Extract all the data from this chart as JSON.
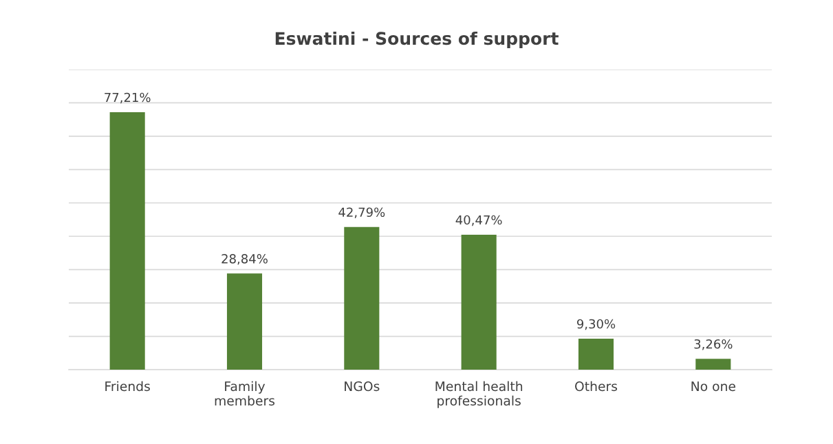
{
  "chart_data": {
    "type": "bar",
    "title": "Eswatini - Sources of support",
    "categories": [
      "Friends",
      "Family\nmembers",
      "NGOs",
      "Mental health\nprofessionals",
      "Others",
      "No one"
    ],
    "values": [
      77.21,
      28.84,
      42.79,
      40.47,
      9.3,
      3.26
    ],
    "value_labels": [
      "77,21%",
      "28,84%",
      "42,79%",
      "40,47%",
      "9,30%",
      "3,26%"
    ],
    "color": "#548235",
    "ylim": [
      0,
      90
    ],
    "yticks": [
      {
        "value": 0,
        "label": null
      },
      {
        "value": 10,
        "label": null
      },
      {
        "value": 20,
        "label": null
      },
      {
        "value": 30,
        "label": null
      },
      {
        "value": 40,
        "label": null
      },
      {
        "value": 50,
        "label": null
      },
      {
        "value": 60,
        "label": null
      },
      {
        "value": 70,
        "label": null
      },
      {
        "value": 80,
        "label": null
      },
      {
        "value": 90,
        "label": null
      }
    ],
    "tick_labels": "x",
    "grid": "y",
    "legend": false
  }
}
